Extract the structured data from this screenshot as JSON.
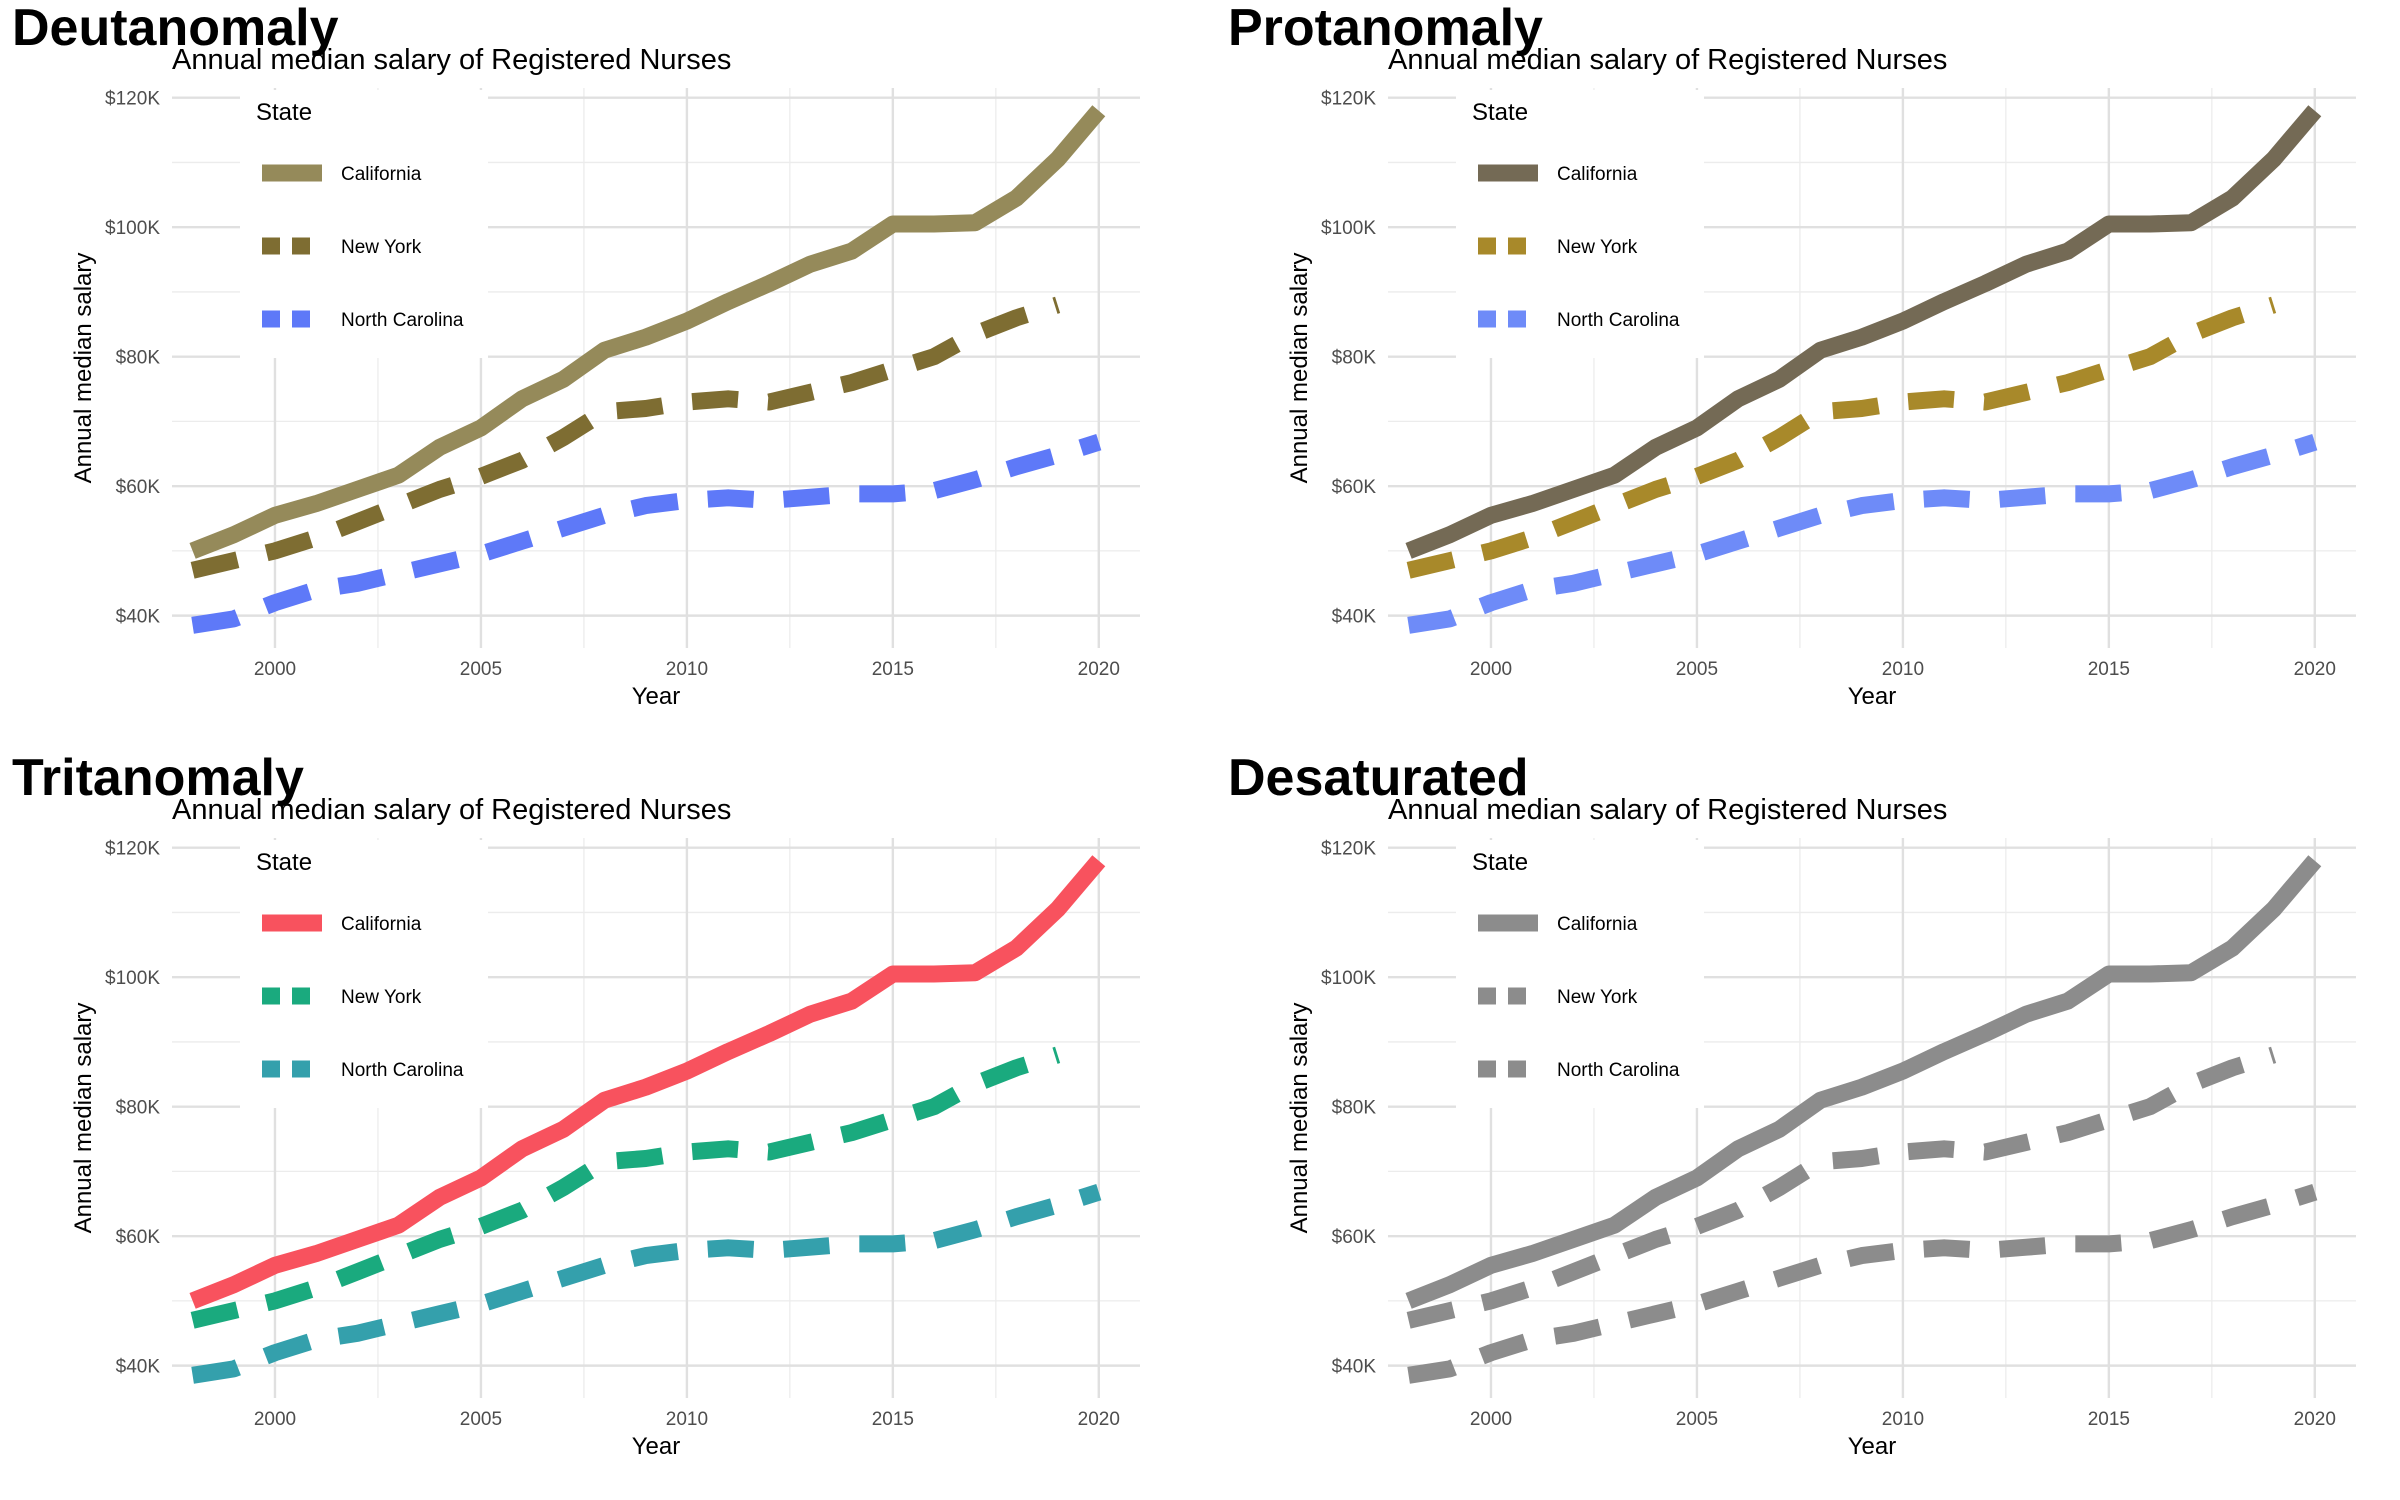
{
  "chart_data": [
    {
      "type": "line",
      "title": "Deutanomaly",
      "subtitle": "Annual median salary of Registered Nurses",
      "xlabel": "Year",
      "ylabel": "Annual median salary",
      "xlim": [
        1997.5,
        2021
      ],
      "ylim": [
        35000,
        121500
      ],
      "x_ticks": [
        2000,
        2005,
        2010,
        2015,
        2020
      ],
      "y_ticks": [
        40000,
        60000,
        80000,
        100000,
        120000
      ],
      "y_tick_labels": [
        "$40K",
        "$60K",
        "$80K",
        "$100K",
        "$120K"
      ],
      "grid": true,
      "legend": {
        "title": "State",
        "position": "top-left"
      },
      "series": [
        {
          "name": "California",
          "color": "#958A5A",
          "dash": "solid",
          "x": [
            1998,
            1999,
            2000,
            2001,
            2002,
            2003,
            2004,
            2005,
            2006,
            2007,
            2008,
            2009,
            2010,
            2011,
            2012,
            2013,
            2014,
            2015,
            2016,
            2017,
            2018,
            2019,
            2020
          ],
          "values": [
            50000,
            52500,
            55500,
            57300,
            59500,
            61700,
            66000,
            69000,
            73500,
            76500,
            81000,
            83000,
            85500,
            88500,
            91300,
            94300,
            96300,
            100500,
            100500,
            100700,
            104500,
            110500,
            118000
          ]
        },
        {
          "name": "New York",
          "color": "#7E6D32",
          "dash": "dashed",
          "x": [
            1998,
            1999,
            2000,
            2001,
            2002,
            2003,
            2004,
            2005,
            2006,
            2007,
            2008,
            2009,
            2010,
            2011,
            2012,
            2013,
            2014,
            2015,
            2016,
            2017,
            2018,
            2019
          ],
          "values": [
            47000,
            48500,
            50000,
            52000,
            54500,
            57000,
            59500,
            61500,
            64000,
            67500,
            71500,
            72000,
            73000,
            73500,
            73000,
            74500,
            76000,
            78000,
            80000,
            83500,
            86000,
            88000
          ]
        },
        {
          "name": "North Carolina",
          "color": "#5E79F8",
          "dash": "dashed",
          "x": [
            1998,
            1999,
            2000,
            2001,
            2002,
            2003,
            2004,
            2005,
            2006,
            2007,
            2008,
            2009,
            2010,
            2011,
            2012,
            2013,
            2014,
            2015,
            2016,
            2017,
            2018,
            2019,
            2020
          ],
          "values": [
            38500,
            39500,
            42000,
            44000,
            45000,
            46500,
            48000,
            49500,
            51500,
            53500,
            55500,
            57000,
            57800,
            58200,
            57800,
            58300,
            58800,
            58800,
            59300,
            61000,
            63000,
            64800,
            66800
          ]
        }
      ]
    },
    {
      "type": "line",
      "title": "Protanomaly",
      "subtitle": "Annual median salary of Registered Nurses",
      "xlabel": "Year",
      "ylabel": "Annual median salary",
      "xlim": [
        1997.5,
        2021
      ],
      "ylim": [
        35000,
        121500
      ],
      "x_ticks": [
        2000,
        2005,
        2010,
        2015,
        2020
      ],
      "y_ticks": [
        40000,
        60000,
        80000,
        100000,
        120000
      ],
      "y_tick_labels": [
        "$40K",
        "$60K",
        "$80K",
        "$100K",
        "$120K"
      ],
      "grid": true,
      "legend": {
        "title": "State",
        "position": "top-left"
      },
      "series": [
        {
          "name": "California",
          "color": "#746A55",
          "dash": "solid",
          "x": [
            1998,
            1999,
            2000,
            2001,
            2002,
            2003,
            2004,
            2005,
            2006,
            2007,
            2008,
            2009,
            2010,
            2011,
            2012,
            2013,
            2014,
            2015,
            2016,
            2017,
            2018,
            2019,
            2020
          ],
          "values": [
            50000,
            52500,
            55500,
            57300,
            59500,
            61700,
            66000,
            69000,
            73500,
            76500,
            81000,
            83000,
            85500,
            88500,
            91300,
            94300,
            96300,
            100500,
            100500,
            100700,
            104500,
            110500,
            118000
          ]
        },
        {
          "name": "New York",
          "color": "#A8892A",
          "dash": "dashed",
          "x": [
            1998,
            1999,
            2000,
            2001,
            2002,
            2003,
            2004,
            2005,
            2006,
            2007,
            2008,
            2009,
            2010,
            2011,
            2012,
            2013,
            2014,
            2015,
            2016,
            2017,
            2018,
            2019
          ],
          "values": [
            47000,
            48500,
            50000,
            52000,
            54500,
            57000,
            59500,
            61500,
            64000,
            67500,
            71500,
            72000,
            73000,
            73500,
            73000,
            74500,
            76000,
            78000,
            80000,
            83500,
            86000,
            88000
          ]
        },
        {
          "name": "North Carolina",
          "color": "#6E8BF8",
          "dash": "dashed",
          "x": [
            1998,
            1999,
            2000,
            2001,
            2002,
            2003,
            2004,
            2005,
            2006,
            2007,
            2008,
            2009,
            2010,
            2011,
            2012,
            2013,
            2014,
            2015,
            2016,
            2017,
            2018,
            2019,
            2020
          ],
          "values": [
            38500,
            39500,
            42000,
            44000,
            45000,
            46500,
            48000,
            49500,
            51500,
            53500,
            55500,
            57000,
            57800,
            58200,
            57800,
            58300,
            58800,
            58800,
            59300,
            61000,
            63000,
            64800,
            66800
          ]
        }
      ]
    },
    {
      "type": "line",
      "title": "Tritanomaly",
      "subtitle": "Annual median salary of Registered Nurses",
      "xlabel": "Year",
      "ylabel": "Annual median salary",
      "xlim": [
        1997.5,
        2021
      ],
      "ylim": [
        35000,
        121500
      ],
      "x_ticks": [
        2000,
        2005,
        2010,
        2015,
        2020
      ],
      "y_ticks": [
        40000,
        60000,
        80000,
        100000,
        120000
      ],
      "y_tick_labels": [
        "$40K",
        "$60K",
        "$80K",
        "$100K",
        "$120K"
      ],
      "grid": true,
      "legend": {
        "title": "State",
        "position": "top-left"
      },
      "series": [
        {
          "name": "California",
          "color": "#F8525E",
          "dash": "solid",
          "x": [
            1998,
            1999,
            2000,
            2001,
            2002,
            2003,
            2004,
            2005,
            2006,
            2007,
            2008,
            2009,
            2010,
            2011,
            2012,
            2013,
            2014,
            2015,
            2016,
            2017,
            2018,
            2019,
            2020
          ],
          "values": [
            50000,
            52500,
            55500,
            57300,
            59500,
            61700,
            66000,
            69000,
            73500,
            76500,
            81000,
            83000,
            85500,
            88500,
            91300,
            94300,
            96300,
            100500,
            100500,
            100700,
            104500,
            110500,
            118000
          ]
        },
        {
          "name": "New York",
          "color": "#1AAA7E",
          "dash": "dashed",
          "x": [
            1998,
            1999,
            2000,
            2001,
            2002,
            2003,
            2004,
            2005,
            2006,
            2007,
            2008,
            2009,
            2010,
            2011,
            2012,
            2013,
            2014,
            2015,
            2016,
            2017,
            2018,
            2019
          ],
          "values": [
            47000,
            48500,
            50000,
            52000,
            54500,
            57000,
            59500,
            61500,
            64000,
            67500,
            71500,
            72000,
            73000,
            73500,
            73000,
            74500,
            76000,
            78000,
            80000,
            83500,
            86000,
            88000
          ]
        },
        {
          "name": "North Carolina",
          "color": "#34A0AC",
          "dash": "dashed",
          "x": [
            1998,
            1999,
            2000,
            2001,
            2002,
            2003,
            2004,
            2005,
            2006,
            2007,
            2008,
            2009,
            2010,
            2011,
            2012,
            2013,
            2014,
            2015,
            2016,
            2017,
            2018,
            2019,
            2020
          ],
          "values": [
            38500,
            39500,
            42000,
            44000,
            45000,
            46500,
            48000,
            49500,
            51500,
            53500,
            55500,
            57000,
            57800,
            58200,
            57800,
            58300,
            58800,
            58800,
            59300,
            61000,
            63000,
            64800,
            66800
          ]
        }
      ]
    },
    {
      "type": "line",
      "title": "Desaturated",
      "subtitle": "Annual median salary of Registered Nurses",
      "xlabel": "Year",
      "ylabel": "Annual median salary",
      "xlim": [
        1997.5,
        2021
      ],
      "ylim": [
        35000,
        121500
      ],
      "x_ticks": [
        2000,
        2005,
        2010,
        2015,
        2020
      ],
      "y_ticks": [
        40000,
        60000,
        80000,
        100000,
        120000
      ],
      "y_tick_labels": [
        "$40K",
        "$60K",
        "$80K",
        "$100K",
        "$120K"
      ],
      "grid": true,
      "legend": {
        "title": "State",
        "position": "top-left"
      },
      "series": [
        {
          "name": "California",
          "color": "#8C8C8C",
          "dash": "solid",
          "x": [
            1998,
            1999,
            2000,
            2001,
            2002,
            2003,
            2004,
            2005,
            2006,
            2007,
            2008,
            2009,
            2010,
            2011,
            2012,
            2013,
            2014,
            2015,
            2016,
            2017,
            2018,
            2019,
            2020
          ],
          "values": [
            50000,
            52500,
            55500,
            57300,
            59500,
            61700,
            66000,
            69000,
            73500,
            76500,
            81000,
            83000,
            85500,
            88500,
            91300,
            94300,
            96300,
            100500,
            100500,
            100700,
            104500,
            110500,
            118000
          ]
        },
        {
          "name": "New York",
          "color": "#8C8C8C",
          "dash": "dashed",
          "x": [
            1998,
            1999,
            2000,
            2001,
            2002,
            2003,
            2004,
            2005,
            2006,
            2007,
            2008,
            2009,
            2010,
            2011,
            2012,
            2013,
            2014,
            2015,
            2016,
            2017,
            2018,
            2019
          ],
          "values": [
            47000,
            48500,
            50000,
            52000,
            54500,
            57000,
            59500,
            61500,
            64000,
            67500,
            71500,
            72000,
            73000,
            73500,
            73000,
            74500,
            76000,
            78000,
            80000,
            83500,
            86000,
            88000
          ]
        },
        {
          "name": "North Carolina",
          "color": "#8C8C8C",
          "dash": "dashed",
          "x": [
            1998,
            1999,
            2000,
            2001,
            2002,
            2003,
            2004,
            2005,
            2006,
            2007,
            2008,
            2009,
            2010,
            2011,
            2012,
            2013,
            2014,
            2015,
            2016,
            2017,
            2018,
            2019,
            2020
          ],
          "values": [
            38500,
            39500,
            42000,
            44000,
            45000,
            46500,
            48000,
            49500,
            51500,
            53500,
            55500,
            57000,
            57800,
            58200,
            57800,
            58300,
            58800,
            58800,
            59300,
            61000,
            63000,
            64800,
            66800
          ]
        }
      ]
    }
  ]
}
